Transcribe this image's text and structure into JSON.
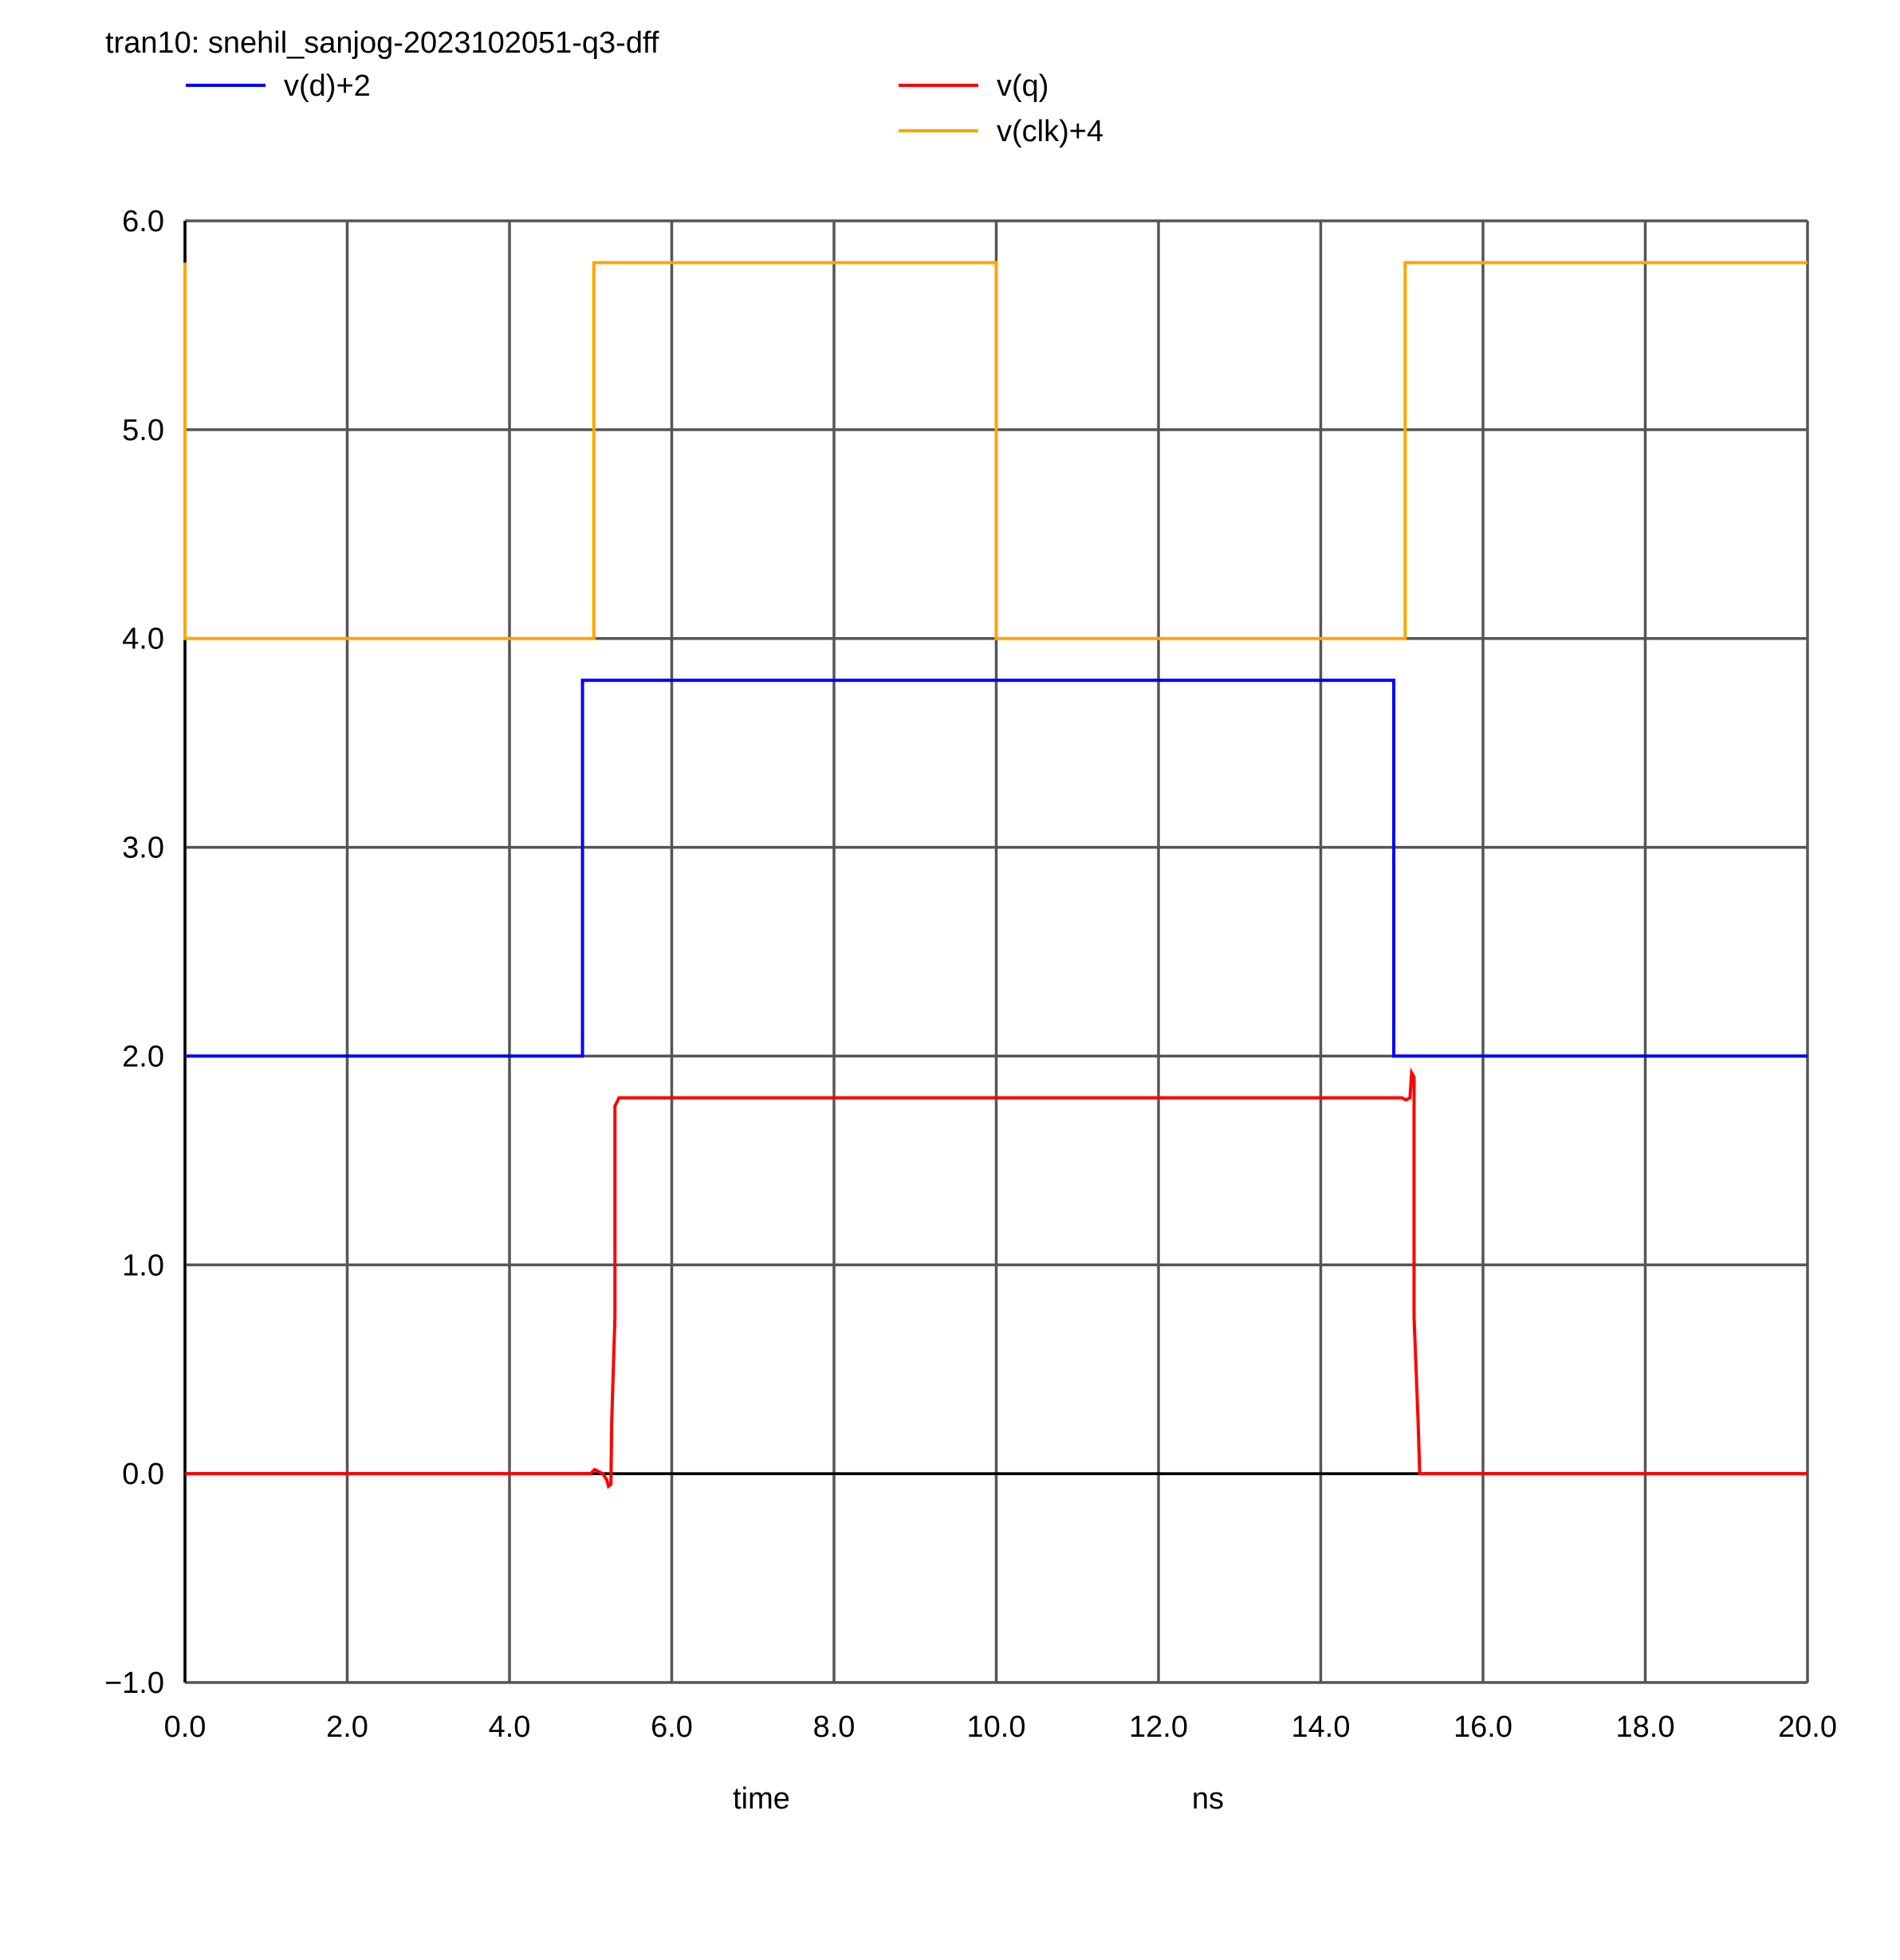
{
  "chart_data": {
    "type": "line",
    "title": "tran10: snehil_sanjog-2023102051-q3-dff",
    "xlabel": "time",
    "xunit": "ns",
    "ylabel": "",
    "xlim": [
      0,
      20
    ],
    "ylim": [
      -1,
      6
    ],
    "x_ticks": [
      "0.0",
      "2.0",
      "4.0",
      "6.0",
      "8.0",
      "10.0",
      "12.0",
      "14.0",
      "16.0",
      "18.0",
      "20.0"
    ],
    "y_ticks": [
      "6.0",
      "5.0",
      "4.0",
      "3.0",
      "2.0",
      "1.0",
      "0.0",
      "−1.0"
    ],
    "grid": true,
    "legend_position": "top",
    "series": [
      {
        "name": "v(d)+2",
        "color": "#0000ff",
        "x": [
          0,
          4.9,
          4.9,
          14.9,
          14.9,
          20
        ],
        "y": [
          2.0,
          2.0,
          3.8,
          3.8,
          2.0,
          2.0
        ]
      },
      {
        "name": "v(q)",
        "color": "#ff0000",
        "x": [
          0,
          5.0,
          5.05,
          5.15,
          5.2,
          5.22,
          5.25,
          5.26,
          5.3,
          5.3,
          5.35,
          7.0,
          10.0,
          10.05,
          15.0,
          15.05,
          15.1,
          15.12,
          15.15,
          15.15,
          15.2,
          15.22,
          15.25,
          20
        ],
        "y": [
          0,
          0,
          0.02,
          0,
          -0.03,
          -0.06,
          -0.05,
          0.25,
          0.75,
          1.76,
          1.8,
          1.8,
          1.8,
          1.8,
          1.8,
          1.79,
          1.8,
          1.92,
          1.9,
          0.75,
          0.25,
          0.0,
          0.0,
          0.0
        ]
      },
      {
        "name": "v(clk)+4",
        "color": "#ffa500",
        "x": [
          0,
          0,
          5.04,
          5.04,
          10.0,
          10.0,
          15.04,
          15.04,
          20
        ],
        "y": [
          5.8,
          4.0,
          4.0,
          5.8,
          5.8,
          4.0,
          4.0,
          5.8,
          5.8
        ]
      }
    ]
  }
}
